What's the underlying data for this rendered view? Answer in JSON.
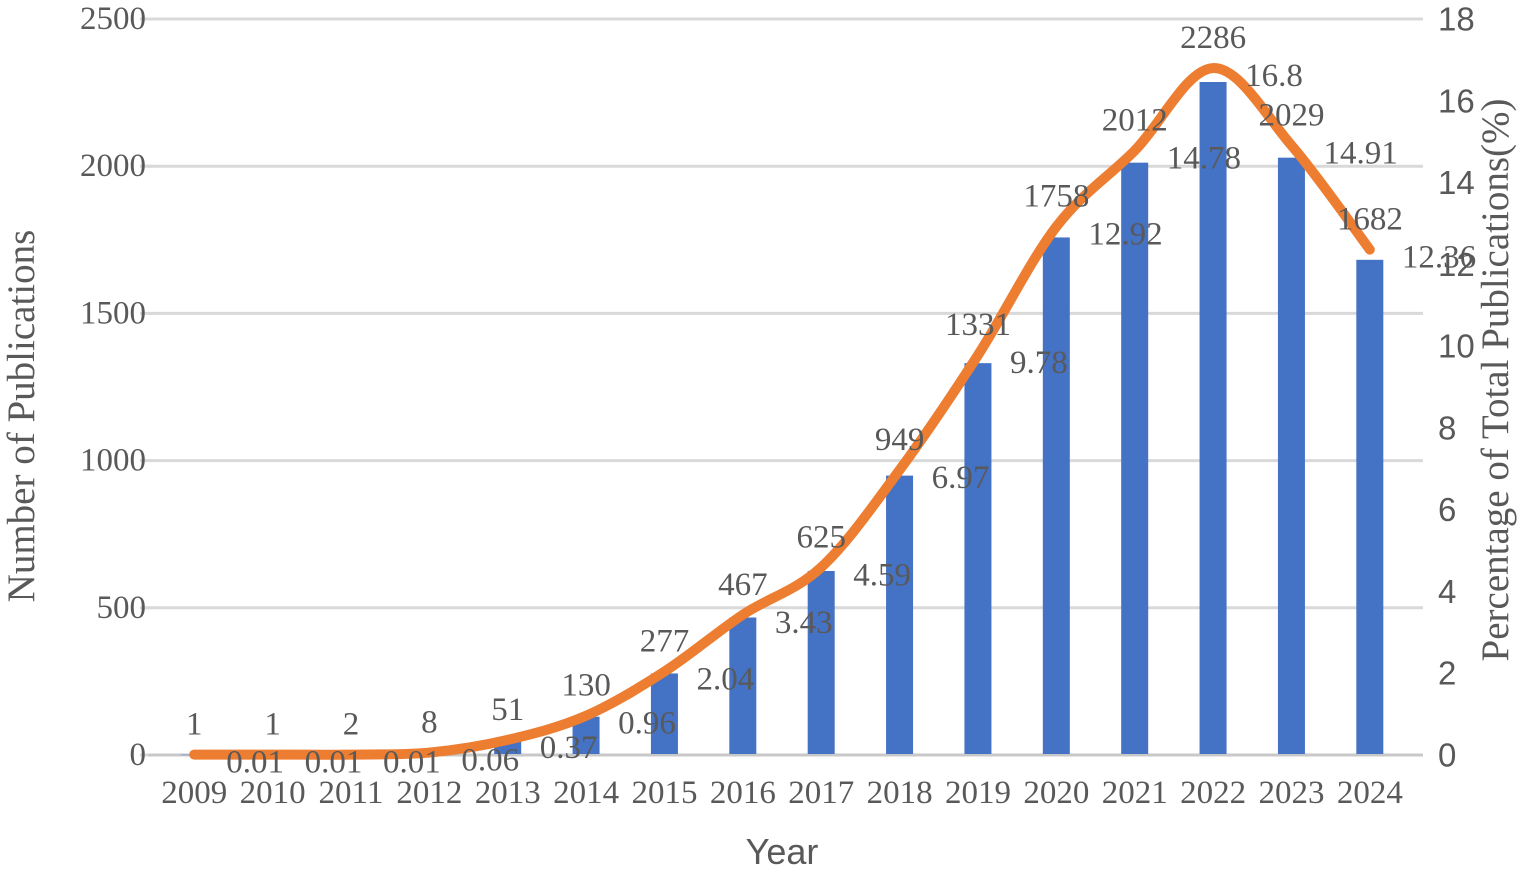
{
  "figure": {
    "xlabel": "Year",
    "ylabel_left": "Number of Publications",
    "ylabel_right": "Percentage of Total Publications(%)"
  },
  "chart_data": {
    "type": "bar",
    "subtype": "combo-bar-line-dual-axis",
    "title": "",
    "xlabel": "Year",
    "ylabel": "Number of Publications",
    "ylabel_right": "Percentage of Total Publications(%)",
    "grid": true,
    "legend": false,
    "categories": [
      "2009",
      "2010",
      "2011",
      "2012",
      "2013",
      "2014",
      "2015",
      "2016",
      "2017",
      "2018",
      "2019",
      "2020",
      "2021",
      "2022",
      "2023",
      "2024"
    ],
    "series": [
      {
        "name": "Number of Publications",
        "type": "bar",
        "axis": "left",
        "color": "#4472C4",
        "values": [
          1,
          1,
          2,
          8,
          51,
          130,
          277,
          467,
          625,
          949,
          1331,
          1758,
          2012,
          2286,
          2029,
          1682
        ],
        "labels": [
          "1",
          "1",
          "2",
          "8",
          "51",
          "130",
          "277",
          "467",
          "625",
          "949",
          "1331",
          "1758",
          "2012",
          "2286",
          "2029",
          "1682"
        ]
      },
      {
        "name": "Percentage of Total Publications(%)",
        "type": "line",
        "axis": "right",
        "color": "#ED7D31",
        "smooth": true,
        "values": [
          0.01,
          0.01,
          0.01,
          0.06,
          0.37,
          0.96,
          2.04,
          3.43,
          4.59,
          6.97,
          9.78,
          12.92,
          14.78,
          16.8,
          14.91,
          12.36
        ],
        "labels": [
          "0.01",
          "0.01",
          "0.01",
          "0.06",
          "0.37",
          "0.96",
          "2.04",
          "3.43",
          "4.59",
          "6.97",
          "9.78",
          "12.92",
          "14.78",
          "16.8",
          "14.91",
          "12.36"
        ]
      }
    ],
    "left_axis": {
      "min": 0,
      "max": 2500,
      "step": 500,
      "ticks": [
        0,
        500,
        1000,
        1500,
        2000,
        2500
      ]
    },
    "right_axis": {
      "min": 0,
      "max": 18,
      "step": 2,
      "ticks": [
        0,
        2,
        4,
        6,
        8,
        10,
        12,
        14,
        16,
        18
      ]
    },
    "colors": {
      "bar": "#4472C4",
      "line": "#ED7D31",
      "text": "#595959",
      "gridline": "#D9D9D9",
      "axis_line": "#C8C8C8"
    }
  }
}
